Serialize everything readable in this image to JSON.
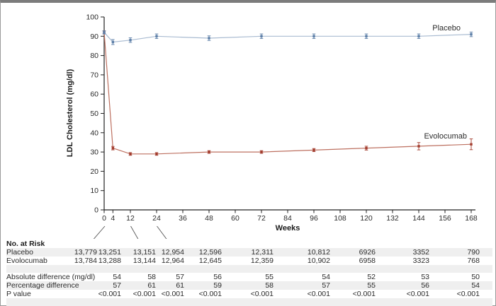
{
  "chart_data": {
    "type": "line",
    "title": "",
    "xlabel": "Weeks",
    "ylabel": "LDL Cholesterol (mg/dl)",
    "xlim": [
      0,
      168
    ],
    "ylim": [
      0,
      100
    ],
    "x_ticks": [
      0,
      4,
      12,
      24,
      36,
      48,
      60,
      72,
      84,
      96,
      108,
      120,
      132,
      144,
      156,
      168
    ],
    "y_ticks": [
      0,
      10,
      20,
      30,
      40,
      50,
      60,
      70,
      80,
      90,
      100
    ],
    "grid": false,
    "legend_position": "inline-right",
    "x": [
      0,
      4,
      12,
      24,
      48,
      72,
      96,
      120,
      144,
      168
    ],
    "series": [
      {
        "name": "Placebo",
        "line_color": "#a9bbd1",
        "point_color": "#5d7fa8",
        "values": [
          92,
          87,
          88,
          90,
          89,
          90,
          90,
          90,
          90,
          91
        ],
        "err": [
          0.8,
          1.3,
          1.2,
          1.2,
          1.2,
          1.2,
          1.2,
          1.2,
          1.2,
          1.2
        ]
      },
      {
        "name": "Evolocumab",
        "line_color": "#bd7060",
        "point_color": "#a33d2f",
        "values": [
          92,
          32,
          29,
          29,
          30,
          30,
          31,
          32,
          33,
          34
        ],
        "err": [
          0.8,
          0.9,
          0.7,
          0.7,
          0.7,
          0.7,
          0.8,
          1.0,
          1.9,
          2.8
        ]
      }
    ]
  },
  "risk_table": {
    "title": "No. at Risk",
    "weeks": [
      "0",
      "4",
      "12",
      "24",
      "48",
      "72",
      "96",
      "120",
      "144",
      "168"
    ],
    "rows": [
      {
        "label": "Placebo",
        "values": [
          "13,779",
          "13,251",
          "13,151",
          "12,954",
          "12,596",
          "12,311",
          "10,812",
          "6926",
          "3352",
          "790"
        ]
      },
      {
        "label": "Evolocumab",
        "values": [
          "13,784",
          "13,288",
          "13,144",
          "12,964",
          "12,645",
          "12,359",
          "10,902",
          "6958",
          "3323",
          "768"
        ]
      }
    ],
    "stats_rows": [
      {
        "label": "Absolute difference (mg/dl)",
        "values": [
          "54",
          "58",
          "57",
          "56",
          "55",
          "54",
          "52",
          "53",
          "50"
        ]
      },
      {
        "label": "Percentage difference",
        "values": [
          "57",
          "61",
          "61",
          "59",
          "58",
          "57",
          "55",
          "56",
          "54"
        ]
      },
      {
        "label": "P value",
        "values": [
          "<0.001",
          "<0.001",
          "<0.001",
          "<0.001",
          "<0.001",
          "<0.001",
          "<0.001",
          "<0.001",
          "<0.001"
        ]
      }
    ]
  }
}
